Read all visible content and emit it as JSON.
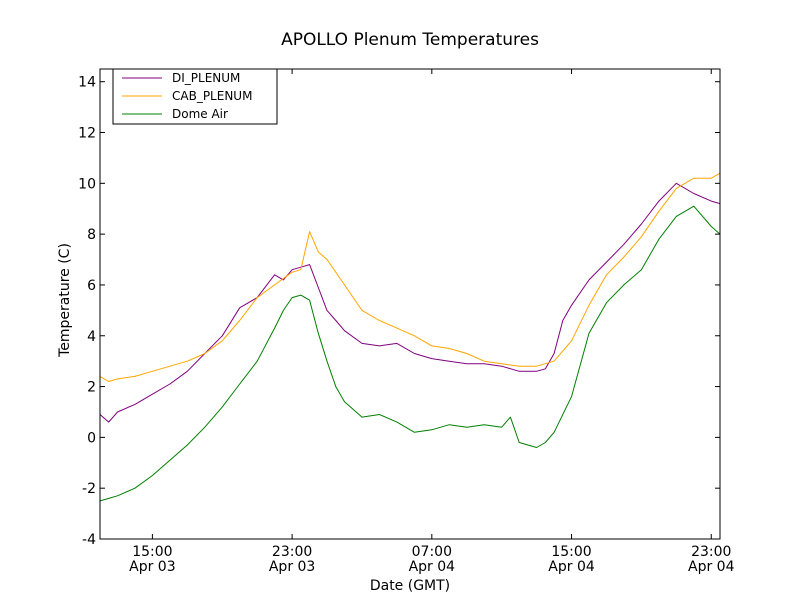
{
  "chart_data": {
    "type": "line",
    "title": "APOLLO Plenum Temperatures",
    "xlabel": "Date (GMT)",
    "ylabel": "Temperature (C)",
    "xlim": [
      0,
      35.5
    ],
    "ylim": [
      -4,
      14.5
    ],
    "y_ticks": [
      {
        "value": -4,
        "label": "-4"
      },
      {
        "value": -2,
        "label": "-2"
      },
      {
        "value": 0,
        "label": "0"
      },
      {
        "value": 2,
        "label": "2"
      },
      {
        "value": 4,
        "label": "4"
      },
      {
        "value": 6,
        "label": "6"
      },
      {
        "value": 8,
        "label": "8"
      },
      {
        "value": 10,
        "label": "10"
      },
      {
        "value": 12,
        "label": "12"
      },
      {
        "value": 14,
        "label": "14"
      }
    ],
    "x_ticks": [
      {
        "value": 3.0,
        "time": "15:00",
        "date": "Apr 03"
      },
      {
        "value": 11.0,
        "time": "23:00",
        "date": "Apr 03"
      },
      {
        "value": 19.0,
        "time": "07:00",
        "date": "Apr 04"
      },
      {
        "value": 27.0,
        "time": "15:00",
        "date": "Apr 04"
      },
      {
        "value": 35.0,
        "time": "23:00",
        "date": "Apr 04"
      }
    ],
    "legend_position": "top-left",
    "series": [
      {
        "name": "DI_PLENUM",
        "color": "#800080",
        "x": [
          0,
          0.5,
          1,
          2,
          3,
          4,
          5,
          6,
          7,
          8,
          9,
          10,
          10.5,
          11,
          11.5,
          12,
          12.5,
          13,
          13.5,
          14,
          15,
          16,
          17,
          18,
          19,
          20,
          21,
          22,
          23,
          24,
          25,
          25.5,
          26,
          26.5,
          27,
          28,
          29,
          30,
          31,
          32,
          33,
          34,
          35,
          35.5
        ],
        "y": [
          0.9,
          0.6,
          1.0,
          1.3,
          1.7,
          2.1,
          2.6,
          3.3,
          4.0,
          5.1,
          5.5,
          6.4,
          6.2,
          6.6,
          6.7,
          6.8,
          5.9,
          5.0,
          4.6,
          4.2,
          3.7,
          3.6,
          3.7,
          3.3,
          3.1,
          3.0,
          2.9,
          2.9,
          2.8,
          2.6,
          2.6,
          2.7,
          3.3,
          4.6,
          5.2,
          6.2,
          6.9,
          7.6,
          8.4,
          9.3,
          10.0,
          9.6,
          9.3,
          9.2
        ]
      },
      {
        "name": "CAB_PLENUM",
        "color": "#ffa500",
        "x": [
          0,
          0.5,
          1,
          2,
          3,
          4,
          5,
          6,
          7,
          8,
          9,
          10,
          11,
          11.5,
          12,
          12.5,
          13,
          14,
          15,
          16,
          17,
          18,
          19,
          20,
          21,
          22,
          23,
          24,
          25,
          26,
          27,
          28,
          29,
          30,
          31,
          32,
          33,
          34,
          35,
          35.5
        ],
        "y": [
          2.4,
          2.2,
          2.3,
          2.4,
          2.6,
          2.8,
          3.0,
          3.3,
          3.8,
          4.6,
          5.5,
          6.0,
          6.5,
          6.6,
          8.1,
          7.3,
          7.0,
          6.0,
          5.0,
          4.6,
          4.3,
          4.0,
          3.6,
          3.5,
          3.3,
          3.0,
          2.9,
          2.8,
          2.8,
          3.0,
          3.8,
          5.2,
          6.4,
          7.1,
          7.9,
          8.9,
          9.8,
          10.2,
          10.2,
          10.4
        ]
      },
      {
        "name": "Dome Air",
        "color": "#008000",
        "x": [
          0,
          0.5,
          1,
          2,
          3,
          4,
          5,
          6,
          7,
          8,
          9,
          10,
          10.5,
          11,
          11.5,
          12,
          12.5,
          13,
          13.5,
          14,
          15,
          16,
          17,
          18,
          19,
          20,
          21,
          22,
          23,
          23.5,
          24,
          25,
          25.5,
          26,
          27,
          28,
          29,
          30,
          31,
          32,
          33,
          34,
          35,
          35.5
        ],
        "y": [
          -2.5,
          -2.4,
          -2.3,
          -2.0,
          -1.5,
          -0.9,
          -0.3,
          0.4,
          1.2,
          2.1,
          3.0,
          4.3,
          5.0,
          5.5,
          5.6,
          5.4,
          4.1,
          3.0,
          2.0,
          1.4,
          0.8,
          0.9,
          0.6,
          0.2,
          0.3,
          0.5,
          0.4,
          0.5,
          0.4,
          0.8,
          -0.2,
          -0.4,
          -0.2,
          0.2,
          1.6,
          4.1,
          5.3,
          6.0,
          6.6,
          7.8,
          8.7,
          9.1,
          8.3,
          8.0
        ]
      }
    ]
  }
}
